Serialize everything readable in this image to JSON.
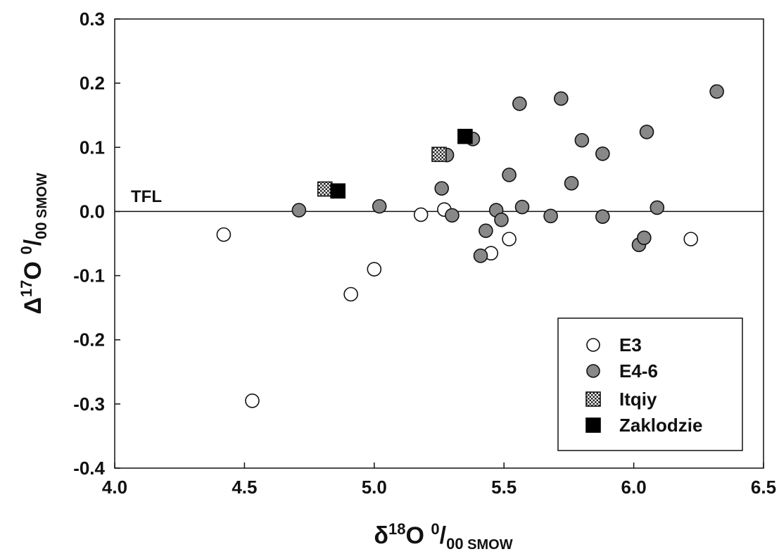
{
  "chart_data": {
    "type": "scatter",
    "xlabel": {
      "main": "δ",
      "sup": "18",
      "mid": "O ",
      "sup2": "0",
      "slash": "/",
      "sub": "00",
      "unit": " SMOW"
    },
    "ylabel": {
      "main": "Δ",
      "sup": "17",
      "mid": "O ",
      "sup2": "0",
      "slash": "/",
      "sub": "00",
      "unit": " SMOW"
    },
    "xlim": [
      4.0,
      6.5
    ],
    "ylim": [
      -0.4,
      0.3
    ],
    "x_ticks": [
      "4.0",
      "4.5",
      "5.0",
      "5.5",
      "6.0",
      "6.5"
    ],
    "y_ticks": [
      "-0.4",
      "-0.3",
      "-0.2",
      "-0.1",
      "0.0",
      "0.1",
      "0.2",
      "0.3"
    ],
    "reference_line": {
      "y": 0.0,
      "label": "TFL"
    },
    "legend_position": "bottom-right",
    "series": [
      {
        "name": "E3",
        "marker": "circle-open",
        "color": "#ffffff",
        "points": [
          [
            4.42,
            -0.036
          ],
          [
            4.53,
            -0.295
          ],
          [
            4.91,
            -0.129
          ],
          [
            5.0,
            -0.09
          ],
          [
            5.18,
            -0.005
          ],
          [
            5.27,
            0.003
          ],
          [
            5.45,
            -0.065
          ],
          [
            5.52,
            -0.043
          ],
          [
            6.22,
            -0.043
          ]
        ]
      },
      {
        "name": "E4-6",
        "marker": "circle-filled",
        "color": "#888888",
        "points": [
          [
            4.71,
            0.002
          ],
          [
            5.02,
            0.008
          ],
          [
            5.26,
            0.036
          ],
          [
            5.28,
            0.088
          ],
          [
            5.3,
            -0.006
          ],
          [
            5.38,
            0.113
          ],
          [
            5.41,
            -0.069
          ],
          [
            5.43,
            -0.03
          ],
          [
            5.47,
            0.002
          ],
          [
            5.49,
            -0.013
          ],
          [
            5.52,
            0.057
          ],
          [
            5.56,
            0.168
          ],
          [
            5.57,
            0.007
          ],
          [
            5.68,
            -0.007
          ],
          [
            5.72,
            0.176
          ],
          [
            5.76,
            0.044
          ],
          [
            5.8,
            0.111
          ],
          [
            5.88,
            0.09
          ],
          [
            5.88,
            -0.008
          ],
          [
            6.02,
            -0.052
          ],
          [
            6.04,
            -0.041
          ],
          [
            6.05,
            0.124
          ],
          [
            6.09,
            0.006
          ],
          [
            6.32,
            0.187
          ]
        ]
      },
      {
        "name": "Itqiy",
        "marker": "square-hatched",
        "color": "#777777",
        "points": [
          [
            4.81,
            0.035
          ],
          [
            5.25,
            0.089
          ]
        ]
      },
      {
        "name": "Zaklodzie",
        "marker": "square-filled",
        "color": "#000000",
        "points": [
          [
            4.86,
            0.032
          ],
          [
            5.35,
            0.117
          ]
        ]
      }
    ]
  }
}
